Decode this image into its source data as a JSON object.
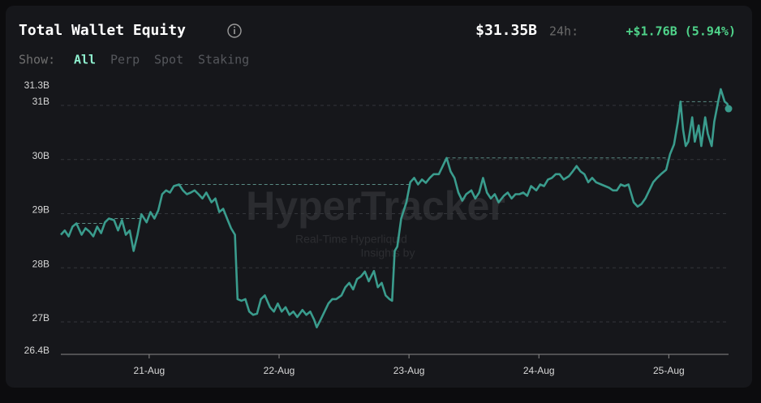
{
  "header": {
    "title": "Total Wallet Equity",
    "value": "$31.35B",
    "change_label": "24h:",
    "change": "+$1.76B (5.94%)"
  },
  "controls": {
    "label": "Show:",
    "options": [
      "All",
      "Perp",
      "Spot",
      "Staking"
    ],
    "active": "All"
  },
  "watermark": {
    "brand": "HyperTracker",
    "line1": "Real-Time Hyperliquid",
    "line2": "Insights by"
  },
  "chart_data": {
    "type": "line",
    "color": "#3a9c8d",
    "grid": true,
    "x": [
      20.32,
      20.35,
      20.38,
      20.41,
      20.44,
      20.48,
      20.51,
      20.54,
      20.57,
      20.6,
      20.63,
      20.66,
      20.69,
      20.73,
      20.76,
      20.79,
      20.82,
      20.85,
      20.88,
      20.91,
      20.94,
      20.98,
      21.01,
      21.04,
      21.07,
      21.1,
      21.13,
      21.16,
      21.19,
      21.23,
      21.26,
      21.29,
      21.32,
      21.35,
      21.38,
      21.41,
      21.44,
      21.48,
      21.51,
      21.54,
      21.57,
      21.6,
      21.63,
      21.66,
      21.68,
      21.71,
      21.74,
      21.77,
      21.8,
      21.83,
      21.86,
      21.89,
      21.93,
      21.96,
      21.99,
      22.02,
      22.05,
      22.08,
      22.11,
      22.14,
      22.18,
      22.21,
      22.24,
      22.27,
      22.29,
      22.32,
      22.35,
      22.38,
      22.41,
      22.44,
      22.48,
      22.51,
      22.54,
      22.57,
      22.6,
      22.63,
      22.66,
      22.69,
      22.73,
      22.76,
      22.79,
      22.82,
      22.85,
      22.87,
      22.89,
      22.91,
      22.94,
      22.98,
      23.01,
      23.04,
      23.07,
      23.1,
      23.13,
      23.16,
      23.19,
      23.23,
      23.26,
      23.29,
      23.32,
      23.35,
      23.38,
      23.41,
      23.44,
      23.48,
      23.51,
      23.54,
      23.57,
      23.6,
      23.63,
      23.66,
      23.69,
      23.73,
      23.76,
      23.79,
      23.82,
      23.85,
      23.88,
      23.91,
      23.94,
      23.98,
      24.01,
      24.04,
      24.07,
      24.1,
      24.13,
      24.16,
      24.19,
      24.23,
      24.26,
      24.29,
      24.32,
      24.35,
      24.38,
      24.41,
      24.44,
      24.48,
      24.51,
      24.54,
      24.57,
      24.6,
      24.63,
      24.66,
      24.69,
      24.73,
      24.76,
      24.79,
      24.82,
      24.85,
      24.88,
      24.91,
      24.94,
      24.98,
      25.01,
      25.04,
      25.07,
      25.09,
      25.11,
      25.13,
      25.15,
      25.18,
      25.2,
      25.23,
      25.25,
      25.28,
      25.3,
      25.33,
      25.35,
      25.38,
      25.4,
      25.43,
      25.45,
      25.46
    ],
    "values": [
      28.61,
      28.69,
      28.58,
      28.76,
      28.82,
      28.61,
      28.73,
      28.67,
      28.58,
      28.76,
      28.64,
      28.84,
      28.91,
      28.88,
      28.69,
      28.88,
      28.61,
      28.69,
      28.31,
      28.61,
      28.99,
      28.84,
      29.03,
      28.91,
      29.06,
      29.36,
      29.43,
      29.39,
      29.51,
      29.54,
      29.43,
      29.36,
      29.39,
      29.43,
      29.36,
      29.28,
      29.39,
      29.21,
      29.28,
      29.03,
      29.09,
      28.91,
      28.73,
      28.61,
      27.42,
      27.39,
      27.42,
      27.19,
      27.13,
      27.15,
      27.42,
      27.49,
      27.27,
      27.19,
      27.34,
      27.19,
      27.27,
      27.13,
      27.19,
      27.09,
      27.22,
      27.13,
      27.19,
      27.04,
      26.9,
      27.04,
      27.19,
      27.34,
      27.42,
      27.42,
      27.49,
      27.64,
      27.72,
      27.6,
      27.79,
      27.84,
      27.93,
      27.75,
      27.94,
      27.64,
      27.72,
      27.49,
      27.42,
      27.39,
      28.31,
      28.39,
      28.91,
      29.21,
      29.58,
      29.66,
      29.54,
      29.63,
      29.57,
      29.66,
      29.73,
      29.73,
      29.88,
      30.03,
      29.78,
      29.66,
      29.39,
      29.24,
      29.36,
      29.43,
      29.28,
      29.39,
      29.66,
      29.39,
      29.28,
      29.36,
      29.21,
      29.33,
      29.39,
      29.28,
      29.36,
      29.36,
      29.39,
      29.33,
      29.51,
      29.43,
      29.54,
      29.51,
      29.63,
      29.66,
      29.73,
      29.73,
      29.63,
      29.69,
      29.78,
      29.88,
      29.78,
      29.73,
      29.58,
      29.66,
      29.58,
      29.54,
      29.51,
      29.48,
      29.43,
      29.43,
      29.54,
      29.51,
      29.54,
      29.21,
      29.13,
      29.18,
      29.28,
      29.43,
      29.58,
      29.66,
      29.73,
      29.81,
      30.1,
      30.28,
      30.7,
      31.07,
      30.55,
      30.25,
      30.33,
      30.78,
      30.33,
      30.63,
      30.25,
      30.78,
      30.48,
      30.25,
      30.7,
      31.07,
      31.3,
      31.07,
      31.03,
      30.94
    ],
    "xlim": [
      20.32,
      25.46
    ],
    "xticks": [
      {
        "value": 21,
        "label": "21-Aug"
      },
      {
        "value": 22,
        "label": "22-Aug"
      },
      {
        "value": 23,
        "label": "23-Aug"
      },
      {
        "value": 24,
        "label": "24-Aug"
      },
      {
        "value": 25,
        "label": "25-Aug"
      }
    ],
    "ylim": [
      26.4,
      31.3
    ],
    "yticks": [
      {
        "value": 26.4,
        "label": "26.4B"
      },
      {
        "value": 27,
        "label": "27B"
      },
      {
        "value": 28,
        "label": "28B"
      },
      {
        "value": 29,
        "label": "29B"
      },
      {
        "value": 30,
        "label": "30B"
      },
      {
        "value": 31,
        "label": "31B"
      },
      {
        "value": 31.3,
        "label": "31.3B"
      }
    ]
  }
}
